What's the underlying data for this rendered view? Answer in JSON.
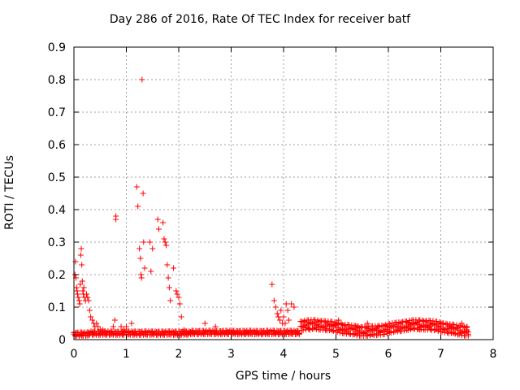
{
  "chart_data": {
    "type": "scatter",
    "title": "Day 286 of 2016, Rate Of TEC Index for receiver batf",
    "xlabel": "GPS time / hours",
    "ylabel": "ROTI / TECUs",
    "xlim": [
      0,
      8
    ],
    "ylim": [
      0,
      0.9
    ],
    "xticks": [
      "0",
      "1",
      "2",
      "3",
      "4",
      "5",
      "6",
      "7",
      "8"
    ],
    "yticks": [
      "0",
      "0.1",
      "0.2",
      "0.3",
      "0.4",
      "0.5",
      "0.6",
      "0.7",
      "0.8",
      "0.9"
    ],
    "grid": true,
    "marker": "+",
    "color": "#ff0000",
    "series": [
      {
        "name": "ROTI",
        "points": [
          [
            0.02,
            0.2
          ],
          [
            0.03,
            0.24
          ],
          [
            0.04,
            0.19
          ],
          [
            0.05,
            0.16
          ],
          [
            0.06,
            0.15
          ],
          [
            0.07,
            0.14
          ],
          [
            0.08,
            0.13
          ],
          [
            0.1,
            0.12
          ],
          [
            0.11,
            0.11
          ],
          [
            0.12,
            0.17
          ],
          [
            0.13,
            0.26
          ],
          [
            0.14,
            0.28
          ],
          [
            0.15,
            0.23
          ],
          [
            0.16,
            0.18
          ],
          [
            0.17,
            0.15
          ],
          [
            0.18,
            0.14
          ],
          [
            0.19,
            0.16
          ],
          [
            0.2,
            0.13
          ],
          [
            0.22,
            0.12
          ],
          [
            0.24,
            0.14
          ],
          [
            0.26,
            0.13
          ],
          [
            0.28,
            0.12
          ],
          [
            0.3,
            0.09
          ],
          [
            0.32,
            0.07
          ],
          [
            0.35,
            0.06
          ],
          [
            0.38,
            0.05
          ],
          [
            0.4,
            0.04
          ],
          [
            0.43,
            0.05
          ],
          [
            0.46,
            0.04
          ],
          [
            0.5,
            0.03
          ],
          [
            0.55,
            0.03
          ],
          [
            0.6,
            0.02
          ],
          [
            0.65,
            0.02
          ],
          [
            0.7,
            0.02
          ],
          [
            0.75,
            0.04
          ],
          [
            0.78,
            0.06
          ],
          [
            0.8,
            0.38
          ],
          [
            0.8,
            0.37
          ],
          [
            0.9,
            0.04
          ],
          [
            0.95,
            0.03
          ],
          [
            1.0,
            0.04
          ],
          [
            1.1,
            0.05
          ],
          [
            1.2,
            0.47
          ],
          [
            1.22,
            0.41
          ],
          [
            1.25,
            0.28
          ],
          [
            1.27,
            0.25
          ],
          [
            1.28,
            0.2
          ],
          [
            1.29,
            0.19
          ],
          [
            1.3,
            0.8
          ],
          [
            1.32,
            0.45
          ],
          [
            1.33,
            0.3
          ],
          [
            1.35,
            0.22
          ],
          [
            1.45,
            0.3
          ],
          [
            1.47,
            0.21
          ],
          [
            1.5,
            0.28
          ],
          [
            1.6,
            0.37
          ],
          [
            1.62,
            0.34
          ],
          [
            1.7,
            0.36
          ],
          [
            1.72,
            0.31
          ],
          [
            1.74,
            0.3
          ],
          [
            1.76,
            0.29
          ],
          [
            1.78,
            0.23
          ],
          [
            1.8,
            0.19
          ],
          [
            1.82,
            0.16
          ],
          [
            1.84,
            0.12
          ],
          [
            1.9,
            0.22
          ],
          [
            1.95,
            0.15
          ],
          [
            1.97,
            0.14
          ],
          [
            2.0,
            0.13
          ],
          [
            2.02,
            0.11
          ],
          [
            2.05,
            0.07
          ],
          [
            2.1,
            0.03
          ],
          [
            2.2,
            0.02
          ],
          [
            2.5,
            0.05
          ],
          [
            2.7,
            0.04
          ],
          [
            3.0,
            0.02
          ],
          [
            3.3,
            0.02
          ],
          [
            3.6,
            0.02
          ],
          [
            3.78,
            0.17
          ],
          [
            3.82,
            0.12
          ],
          [
            3.85,
            0.1
          ],
          [
            3.88,
            0.08
          ],
          [
            3.9,
            0.07
          ],
          [
            3.93,
            0.06
          ],
          [
            3.95,
            0.09
          ],
          [
            3.98,
            0.05
          ],
          [
            4.0,
            0.07
          ],
          [
            4.03,
            0.05
          ],
          [
            4.05,
            0.11
          ],
          [
            4.08,
            0.09
          ],
          [
            4.1,
            0.06
          ],
          [
            4.15,
            0.11
          ],
          [
            4.2,
            0.1
          ],
          [
            4.5,
            0.03
          ],
          [
            4.8,
            0.03
          ],
          [
            5.0,
            0.05
          ],
          [
            5.05,
            0.06
          ],
          [
            5.1,
            0.05
          ],
          [
            5.4,
            0.04
          ],
          [
            5.6,
            0.05
          ],
          [
            5.8,
            0.04
          ],
          [
            6.0,
            0.04
          ],
          [
            6.2,
            0.03
          ],
          [
            6.4,
            0.04
          ],
          [
            6.6,
            0.03
          ],
          [
            6.8,
            0.04
          ],
          [
            7.0,
            0.05
          ],
          [
            7.2,
            0.04
          ],
          [
            7.4,
            0.05
          ],
          [
            7.5,
            0.03
          ]
        ]
      }
    ]
  }
}
